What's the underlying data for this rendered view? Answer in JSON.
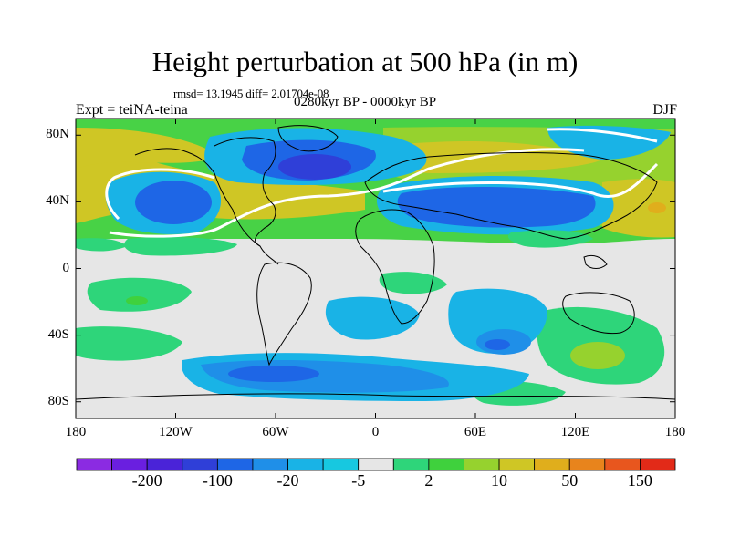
{
  "chart_data": {
    "type": "contour-map",
    "title": "Height perturbation at 500 hPa (in m)",
    "stats": "rmsd= 13.1945 diff= 2.01704e-08",
    "period": "0280kyr BP - 0000kyr BP",
    "experiment": "Expt = teiNA-teina",
    "season": "DJF",
    "lon_range": [
      -180,
      180
    ],
    "lat_range": [
      -90,
      90
    ],
    "y_ticks": [
      {
        "value": 80,
        "label": "80N"
      },
      {
        "value": 40,
        "label": "40N"
      },
      {
        "value": 0,
        "label": "0"
      },
      {
        "value": -40,
        "label": "40S"
      },
      {
        "value": -80,
        "label": "80S"
      }
    ],
    "x_ticks": [
      {
        "value": -180,
        "label": "180"
      },
      {
        "value": -120,
        "label": "120W"
      },
      {
        "value": -60,
        "label": "60W"
      },
      {
        "value": 0,
        "label": "0"
      },
      {
        "value": 60,
        "label": "60E"
      },
      {
        "value": 120,
        "label": "120E"
      },
      {
        "value": 180,
        "label": "180"
      }
    ],
    "colorbar": {
      "colors": [
        "#8b2be2",
        "#6a1fe0",
        "#4a23d8",
        "#2f3fd8",
        "#1e66e6",
        "#1f8fe8",
        "#19b3e6",
        "#17c8e0",
        "#e6e6e6",
        "#2ed57a",
        "#3fd13d",
        "#96d22e",
        "#cfc625",
        "#e0ae1c",
        "#e8841c",
        "#e8561e",
        "#e22a18"
      ],
      "labels": [
        {
          "after_index": 1,
          "text": "-200"
        },
        {
          "after_index": 3,
          "text": "-100"
        },
        {
          "after_index": 5,
          "text": "-20"
        },
        {
          "after_index": 7,
          "text": "-5"
        },
        {
          "after_index": 9,
          "text": "2"
        },
        {
          "after_index": 11,
          "text": "10"
        },
        {
          "after_index": 13,
          "text": "50"
        },
        {
          "after_index": 15,
          "text": "150"
        }
      ]
    },
    "regions": [
      {
        "name": "n-atlantic-low",
        "color": "#1e66e6",
        "lon": -35,
        "lat": 68,
        "rx": 75,
        "ry": 20
      },
      {
        "name": "n-pacific-low",
        "color": "#1f8fe8",
        "lon": -110,
        "lat": 40,
        "rx": 35,
        "ry": 22
      },
      {
        "name": "asia-low",
        "color": "#1f8fe8",
        "lon": 60,
        "lat": 40,
        "rx": 75,
        "ry": 18
      },
      {
        "name": "n-pacific-high",
        "color": "#cfc625",
        "lon": -155,
        "lat": 55,
        "rx": 35,
        "ry": 30
      },
      {
        "name": "atlantic-high",
        "color": "#cfc625",
        "lon": -40,
        "lat": 38,
        "rx": 45,
        "ry": 18
      },
      {
        "name": "eurasia-high",
        "color": "#96d22e",
        "lon": 60,
        "lat": 70,
        "rx": 70,
        "ry": 14
      },
      {
        "name": "w-pacific-high",
        "color": "#cfc625",
        "lon": 150,
        "lat": 45,
        "rx": 30,
        "ry": 20
      },
      {
        "name": "southern-low",
        "color": "#1f8fe8",
        "lon": -20,
        "lat": -65,
        "rx": 100,
        "ry": 16
      },
      {
        "name": "indian-ocean-low",
        "color": "#1f8fe8",
        "lon": 65,
        "lat": -40,
        "rx": 30,
        "ry": 18
      },
      {
        "name": "s-pacific-high",
        "color": "#2ed57a",
        "lon": 130,
        "lat": -50,
        "rx": 30,
        "ry": 22
      }
    ]
  }
}
